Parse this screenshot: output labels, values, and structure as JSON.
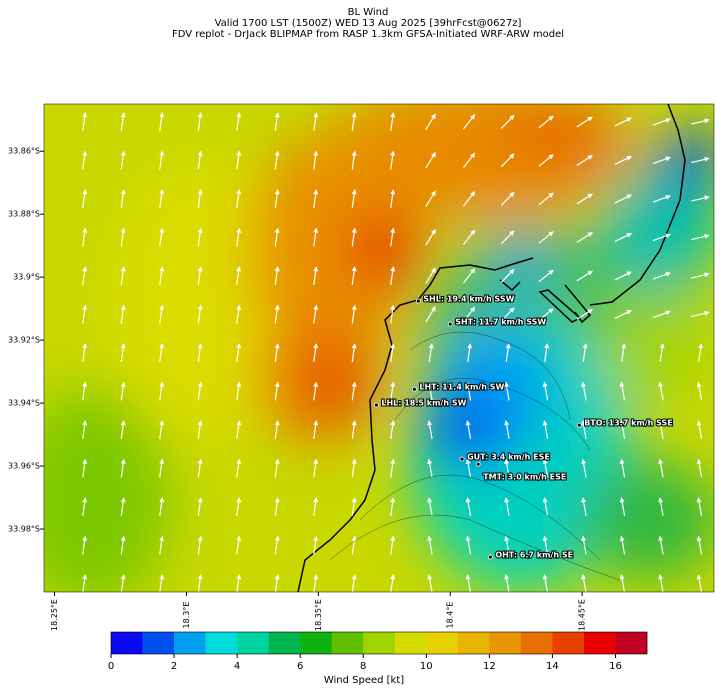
{
  "header": {
    "title": [
      "BL Wind",
      "Valid 1700 LST (1500Z) WED 13 Aug 2025 [39hrFcst@0627z]",
      "FDV replot - DrJack BLIPMAP from RASP 1.3km GFSA-Initiated WRF-ARW model"
    ]
  },
  "map": {
    "xlim": [
      18.246,
      18.5
    ],
    "ylim": [
      -34.0,
      -33.845
    ],
    "xticks": [
      {
        "value": 18.25,
        "label": "18.25°E"
      },
      {
        "value": 18.3,
        "label": "18.3°E"
      },
      {
        "value": 18.35,
        "label": "18.35°E"
      },
      {
        "value": 18.4,
        "label": "18.4°E"
      },
      {
        "value": 18.45,
        "label": "18.45°E"
      }
    ],
    "yticks": [
      {
        "value": -33.86,
        "label": "33.86°S"
      },
      {
        "value": -33.88,
        "label": "33.88°S"
      },
      {
        "value": -33.9,
        "label": "33.9°S"
      },
      {
        "value": -33.92,
        "label": "33.92°S"
      },
      {
        "value": -33.94,
        "label": "33.94°S"
      },
      {
        "value": -33.96,
        "label": "33.96°S"
      },
      {
        "value": -33.98,
        "label": "33.98°S"
      }
    ],
    "stations": [
      {
        "label": "SHL: 19.4 km/h SSW",
        "lon": 18.3879,
        "lat": -33.9076
      },
      {
        "label": "SHT: 11.7 km/h SSW",
        "lon": 18.4,
        "lat": -33.9149
      },
      {
        "label": "LHT: 11.4 km/h SW",
        "lon": 18.3864,
        "lat": -33.9356
      },
      {
        "label": "LHL: 18.5 km/h SW",
        "lon": 18.372,
        "lat": -33.9406
      },
      {
        "label": "BTO: 13.7 km/h SSE",
        "lon": 18.4489,
        "lat": -33.947
      },
      {
        "label": "GUT: 3.4 km/h ESE",
        "lon": 18.4045,
        "lat": -33.9578
      },
      {
        "label": "TMT: 3.0 km/h ESE",
        "lon": 18.4106,
        "lat": -33.9594
      },
      {
        "label": "OHT: 6.7 km/h SE",
        "lon": 18.4152,
        "lat": -33.9889
      }
    ]
  },
  "colorbar": {
    "label": "Wind Speed [kt]",
    "lim": [
      0,
      17
    ],
    "ticks": [
      0,
      2,
      4,
      6,
      8,
      10,
      12,
      14,
      16
    ],
    "colors": [
      "#0a0af0",
      "#0050f0",
      "#00a0f0",
      "#00dcdc",
      "#00d2a0",
      "#00b450",
      "#10b010",
      "#60c000",
      "#a0d400",
      "#d4dc00",
      "#e8d000",
      "#e8b400",
      "#e89600",
      "#e87000",
      "#e84000",
      "#e80000",
      "#c00020"
    ]
  }
}
